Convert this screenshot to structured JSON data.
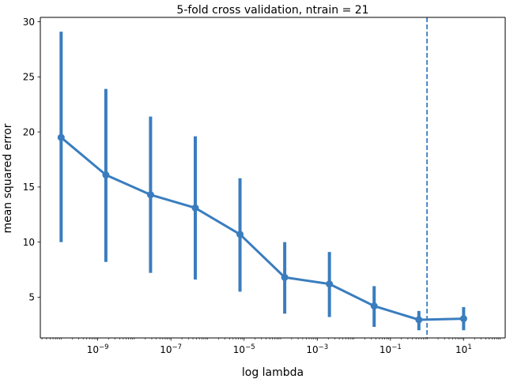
{
  "chart_data": {
    "type": "line",
    "title": "5-fold cross validation, ntrain = 21",
    "xlabel": "log lambda",
    "ylabel": "mean squared error",
    "x_scale": "log",
    "xlim": [
      2.7e-11,
      137
    ],
    "ylim": [
      1.3,
      30.4
    ],
    "x_ticks": [
      {
        "value": 1e-09,
        "base": "10",
        "exp": "−9"
      },
      {
        "value": 1e-07,
        "base": "10",
        "exp": "−7"
      },
      {
        "value": 1e-05,
        "base": "10",
        "exp": "−5"
      },
      {
        "value": 0.001,
        "base": "10",
        "exp": "−3"
      },
      {
        "value": 0.1,
        "base": "10",
        "exp": "−1"
      },
      {
        "value": 10,
        "base": "10",
        "exp": "1"
      }
    ],
    "y_ticks": [
      {
        "value": 5,
        "label": "5"
      },
      {
        "value": 10,
        "label": "10"
      },
      {
        "value": 15,
        "label": "15"
      },
      {
        "value": 20,
        "label": "20"
      },
      {
        "value": 25,
        "label": "25"
      },
      {
        "value": 30,
        "label": "30"
      }
    ],
    "series": [
      {
        "color": "#3a7dbf",
        "points": [
          {
            "x": 1e-10,
            "y": 19.5,
            "lo": 10.0,
            "hi": 29.1
          },
          {
            "x": 1.67e-09,
            "y": 16.1,
            "lo": 8.2,
            "hi": 23.9
          },
          {
            "x": 2.78e-08,
            "y": 14.3,
            "lo": 7.2,
            "hi": 21.4
          },
          {
            "x": 4.64e-07,
            "y": 13.1,
            "lo": 6.6,
            "hi": 19.6
          },
          {
            "x": 7.74e-06,
            "y": 10.7,
            "lo": 5.5,
            "hi": 15.8
          },
          {
            "x": 0.000129,
            "y": 6.8,
            "lo": 3.5,
            "hi": 10.0
          },
          {
            "x": 0.00215,
            "y": 6.2,
            "lo": 3.2,
            "hi": 9.1
          },
          {
            "x": 0.0359,
            "y": 4.2,
            "lo": 2.3,
            "hi": 6.0
          },
          {
            "x": 0.599,
            "y": 2.95,
            "lo": 2.0,
            "hi": 3.75
          },
          {
            "x": 10.0,
            "y": 3.05,
            "lo": 2.0,
            "hi": 4.1
          }
        ]
      }
    ],
    "vline": {
      "x": 1.0,
      "style": "dashed",
      "color": "#3a7dbf"
    }
  }
}
